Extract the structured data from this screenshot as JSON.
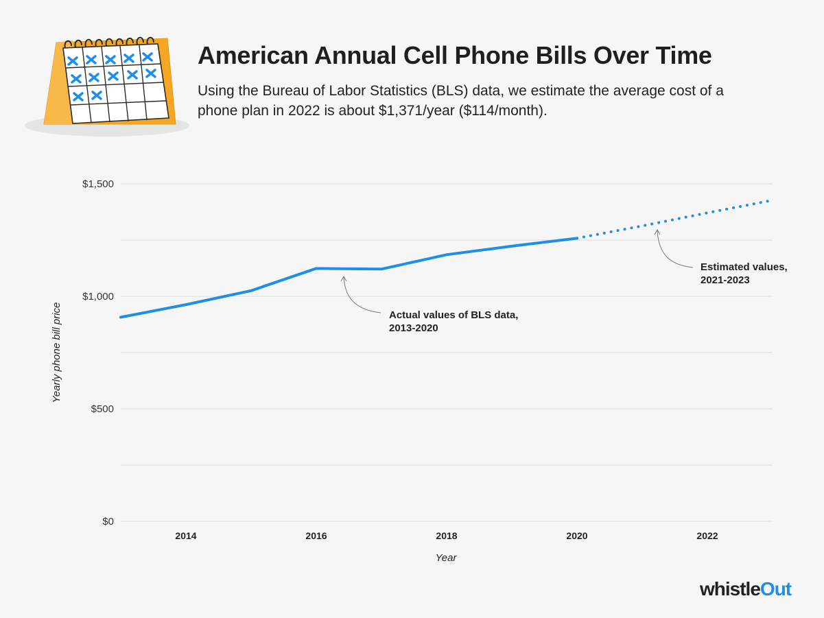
{
  "header": {
    "title": "American Annual Cell Phone Bills Over Time",
    "subtitle": "Using the Bureau of Labor Statistics (BLS) data, we estimate the average cost of a phone plan in 2022 is about $1,371/year ($114/month)."
  },
  "calendar_icon": "calendar-icon",
  "brand": {
    "name_part1": "whistle",
    "name_part2": "Out",
    "accent": "#1e8ee8"
  },
  "chart_data": {
    "type": "line",
    "title": "",
    "xlabel": "Year",
    "ylabel": "Yearly phone bill price",
    "xlim": [
      2013,
      2023
    ],
    "ylim": [
      0,
      1500
    ],
    "x_ticks": [
      2014,
      2016,
      2018,
      2020,
      2022
    ],
    "x_tick_labels": [
      "2014",
      "2016",
      "2018",
      "2020",
      "2022"
    ],
    "y_ticks": [
      0,
      250,
      500,
      750,
      1000,
      1250,
      1500
    ],
    "y_tick_labels": [
      "$0",
      "",
      "$500",
      "",
      "$1,000",
      "",
      "$1,500"
    ],
    "grid": true,
    "series": [
      {
        "style": "solid",
        "color": "#1e8ee8",
        "x": [
          2013,
          2014,
          2015,
          2016,
          2017,
          2018,
          2019,
          2020
        ],
        "y": [
          907,
          963,
          1025,
          1124,
          1121,
          1185,
          1223,
          1258
        ]
      },
      {
        "style": "dotted",
        "color": "#1e8ee8",
        "x": [
          2020,
          2021,
          2022,
          2023
        ],
        "y": [
          1258,
          1313,
          1371,
          1427
        ]
      }
    ],
    "annotations": [
      {
        "line1": "Actual values of BLS data,",
        "line2": "2013-2020"
      },
      {
        "line1": "Estimated values,",
        "line2": "2021-2023"
      }
    ]
  }
}
